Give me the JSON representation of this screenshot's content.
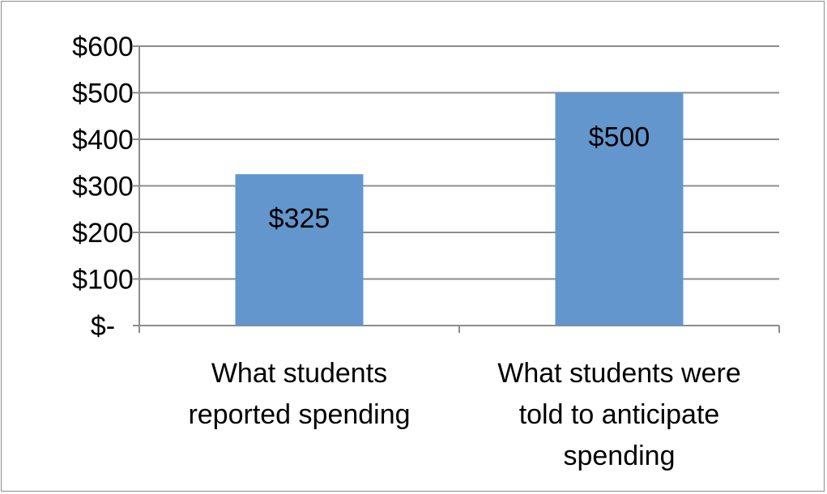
{
  "chart_data": {
    "type": "bar",
    "categories": [
      [
        "What students",
        "reported spending"
      ],
      [
        "What students were",
        "told to anticipate",
        "spending"
      ]
    ],
    "values": [
      325,
      500
    ],
    "data_labels": [
      "$325",
      "$500"
    ],
    "y_tick_values": [
      0,
      100,
      200,
      300,
      400,
      500,
      600
    ],
    "y_tick_labels": [
      "$-",
      "$100",
      "$200",
      "$300",
      "$400",
      "$500",
      "$600"
    ],
    "ylim": [
      0,
      600
    ],
    "grid": true,
    "legend": "none",
    "title": "",
    "xlabel": "",
    "ylabel": "",
    "colors": {
      "bar": "#6396cd",
      "grid": "#8c8c8c",
      "axis": "#8c8c8c",
      "frame": "#8c8c8c"
    }
  }
}
